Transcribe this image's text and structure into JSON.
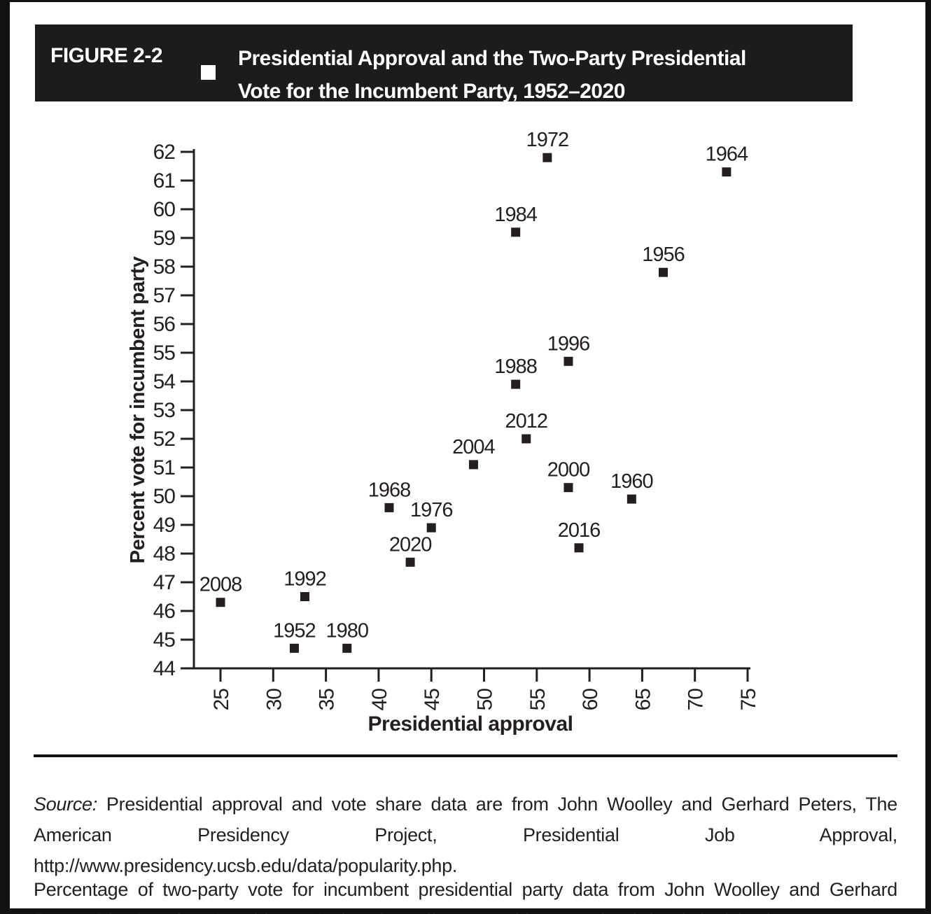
{
  "figure": {
    "label": "FIGURE 2-2",
    "bullet_icon": "square-bullet",
    "title_line1": "Presidential Approval and the Two-Party Presidential",
    "title_line2": "Vote for the Incumbent Party, 1952–2020"
  },
  "chart_data": {
    "type": "scatter",
    "title": "",
    "xlabel": "Presidential approval",
    "ylabel": "Percent vote for incumbent party",
    "xlim": [
      25,
      75
    ],
    "ylim": [
      44,
      62
    ],
    "x_ticks": [
      25,
      30,
      35,
      40,
      45,
      50,
      55,
      60,
      65,
      70,
      75
    ],
    "y_ticks": [
      44,
      45,
      46,
      47,
      48,
      49,
      50,
      51,
      52,
      53,
      54,
      55,
      56,
      57,
      58,
      59,
      60,
      61,
      62
    ],
    "x_tick_label_rotation": -90,
    "grid": false,
    "legend": "none",
    "marker": "filled-square",
    "points": [
      {
        "year": "1952",
        "approval": 32,
        "vote": 44.7
      },
      {
        "year": "1956",
        "approval": 67,
        "vote": 57.8
      },
      {
        "year": "1960",
        "approval": 64,
        "vote": 49.9
      },
      {
        "year": "1964",
        "approval": 73,
        "vote": 61.3
      },
      {
        "year": "1968",
        "approval": 41,
        "vote": 49.6
      },
      {
        "year": "1972",
        "approval": 56,
        "vote": 61.8
      },
      {
        "year": "1976",
        "approval": 45,
        "vote": 48.9
      },
      {
        "year": "1980",
        "approval": 37,
        "vote": 44.7
      },
      {
        "year": "1984",
        "approval": 53,
        "vote": 59.2
      },
      {
        "year": "1988",
        "approval": 53,
        "vote": 53.9
      },
      {
        "year": "1992",
        "approval": 33,
        "vote": 46.5
      },
      {
        "year": "1996",
        "approval": 58,
        "vote": 54.7
      },
      {
        "year": "2000",
        "approval": 58,
        "vote": 50.3
      },
      {
        "year": "2004",
        "approval": 49,
        "vote": 51.1
      },
      {
        "year": "2008",
        "approval": 25,
        "vote": 46.3
      },
      {
        "year": "2012",
        "approval": 54,
        "vote": 52.0
      },
      {
        "year": "2016",
        "approval": 59,
        "vote": 48.2
      },
      {
        "year": "2020",
        "approval": 43,
        "vote": 47.7
      }
    ]
  },
  "source_note": {
    "source_label": "Source:",
    "source_text": " Presidential approval and vote share data are from John Woolley and Gerhard Peters, The American Presidency Project, Presidential Job Approval, http://www.presidency.ucsb.edu/data/popularity.php.",
    "note_text": "Percentage of two-party vote for incumbent presidential party data from John Woolley and Gerhard Peters, The American Presidency Project, https://www.presidency.ucsb.edu/statistics/elections."
  },
  "colors": {
    "ink": "#231f20",
    "frame": "#111111",
    "header_bg": "#1e1b1c",
    "header_text": "#ffffff",
    "background": "#ffffff"
  }
}
